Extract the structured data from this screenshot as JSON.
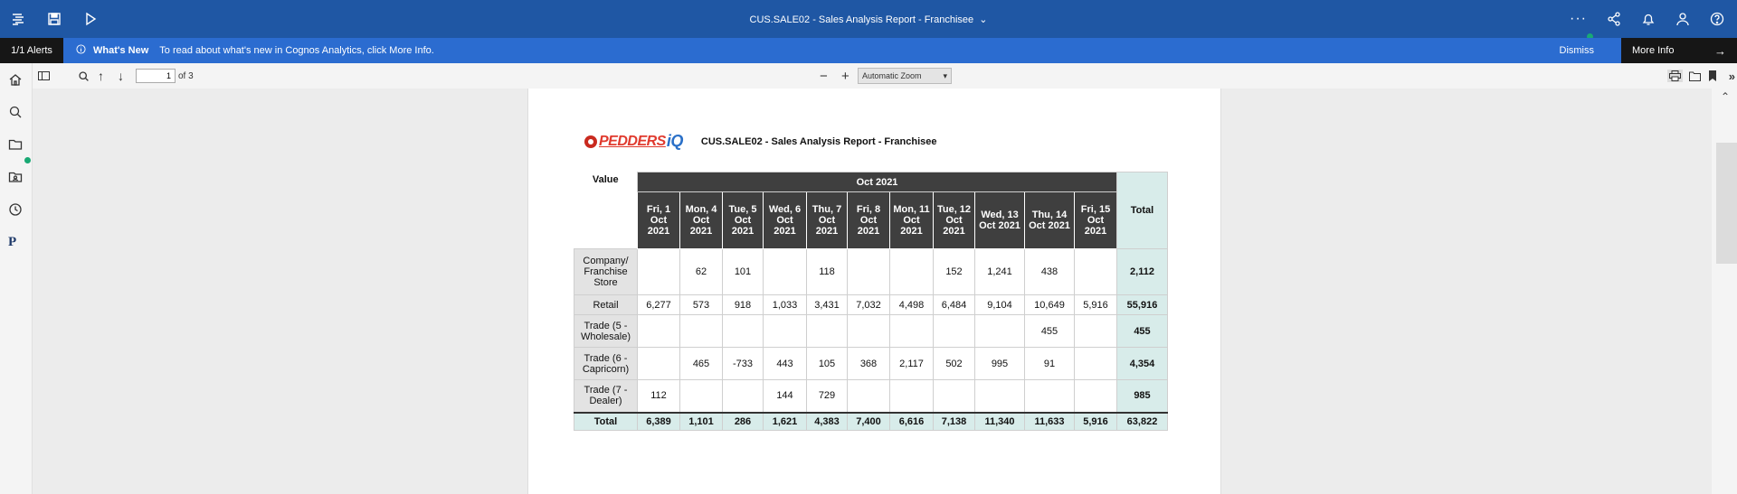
{
  "top_bar": {
    "report_title": "CUS.SALE02 - Sales Analysis Report - Franchisee",
    "icons": [
      "menu-icon",
      "save-icon",
      "run-icon",
      "more-icon",
      "share-icon",
      "notifications-icon",
      "user-icon",
      "help-icon"
    ]
  },
  "alert_bar": {
    "count": "1/1 Alerts",
    "whats_new": "What's New",
    "message": "To read about what's new in Cognos Analytics, click More Info.",
    "dismiss": "Dismiss",
    "more_info": "More Info"
  },
  "toolbar": {
    "page_value": "1",
    "page_of": "of 3",
    "zoom_label": "Automatic Zoom"
  },
  "report": {
    "logo_text": "PEDDERS",
    "logo_suffix": "iQ",
    "title": "CUS.SALE02 - Sales Analysis Report - Franchisee",
    "corner_label": "Value",
    "month_header": "Oct 2021",
    "total_header": "Total",
    "columns": [
      "Fri, 1 Oct 2021",
      "Mon, 4 Oct 2021",
      "Tue, 5 Oct 2021",
      "Wed, 6 Oct 2021",
      "Thu, 7 Oct 2021",
      "Fri, 8 Oct 2021",
      "Mon, 11 Oct 2021",
      "Tue, 12 Oct 2021",
      "Wed, 13 Oct 2021",
      "Thu, 14 Oct 2021",
      "Fri, 15 Oct 2021"
    ],
    "rows": [
      {
        "label": "Company/ Franchise Store",
        "values": [
          "",
          "62",
          "101",
          "",
          "118",
          "",
          "",
          "152",
          "1,241",
          "438",
          ""
        ],
        "total": "2,112"
      },
      {
        "label": "Retail",
        "values": [
          "6,277",
          "573",
          "918",
          "1,033",
          "3,431",
          "7,032",
          "4,498",
          "6,484",
          "9,104",
          "10,649",
          "5,916"
        ],
        "total": "55,916"
      },
      {
        "label": "Trade (5 - Wholesale)",
        "values": [
          "",
          "",
          "",
          "",
          "",
          "",
          "",
          "",
          "",
          "455",
          ""
        ],
        "total": "455"
      },
      {
        "label": "Trade (6 - Capricorn)",
        "values": [
          "",
          "465",
          "-733",
          "443",
          "105",
          "368",
          "2,117",
          "502",
          "995",
          "91",
          ""
        ],
        "total": "4,354"
      },
      {
        "label": "Trade (7 - Dealer)",
        "values": [
          "112",
          "",
          "",
          "144",
          "729",
          "",
          "",
          "",
          "",
          "",
          ""
        ],
        "total": "985"
      }
    ],
    "grand_total": {
      "label": "Total",
      "values": [
        "6,389",
        "1,101",
        "286",
        "1,621",
        "4,383",
        "7,400",
        "6,616",
        "7,138",
        "11,340",
        "11,633",
        "5,916"
      ],
      "total": "63,822"
    }
  }
}
